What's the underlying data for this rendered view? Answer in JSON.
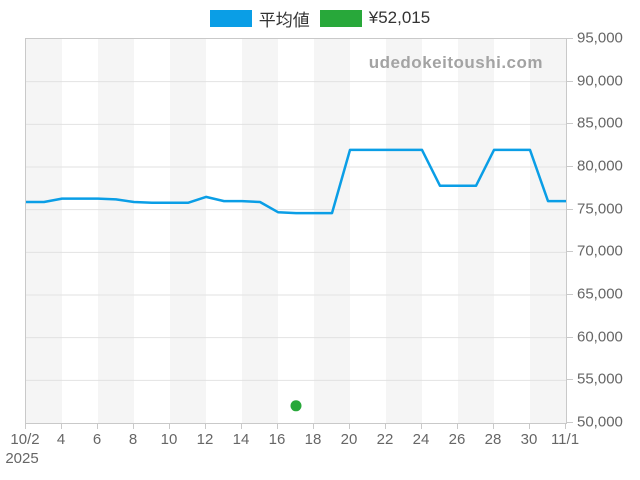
{
  "watermark": "udedokeitoushi.com",
  "legend": {
    "items": [
      {
        "label": "平均値",
        "color": "#0a9ee6"
      },
      {
        "label": "¥52,015",
        "color": "#28a83a"
      }
    ]
  },
  "chart_data": {
    "type": "line",
    "title": "",
    "xlabel": "",
    "ylabel": "",
    "year_label": "2025",
    "x": [
      "10/2",
      "10/3",
      "10/4",
      "10/5",
      "10/6",
      "10/7",
      "10/8",
      "10/9",
      "10/10",
      "10/11",
      "10/12",
      "10/13",
      "10/14",
      "10/15",
      "10/16",
      "10/17",
      "10/18",
      "10/19",
      "10/20",
      "10/21",
      "10/22",
      "10/23",
      "10/24",
      "10/25",
      "10/26",
      "10/27",
      "10/28",
      "10/29",
      "10/30",
      "10/31",
      "11/1"
    ],
    "series": [
      {
        "name": "平均値",
        "type": "line",
        "color": "#0a9ee6",
        "values": [
          75900,
          75900,
          76300,
          76300,
          76300,
          76200,
          75900,
          75800,
          75800,
          75800,
          76500,
          76000,
          76000,
          75900,
          74700,
          74600,
          74600,
          74600,
          82000,
          82000,
          82000,
          82000,
          82000,
          77800,
          77800,
          77800,
          82000,
          82000,
          82000,
          76000,
          76000
        ]
      },
      {
        "name": "¥52,015",
        "type": "scatter",
        "color": "#28a83a",
        "points": [
          {
            "x": "10/17",
            "y": 52015
          }
        ]
      }
    ],
    "x_ticks": [
      {
        "label": "10/2",
        "day": 0
      },
      {
        "label": "4",
        "day": 2
      },
      {
        "label": "6",
        "day": 4
      },
      {
        "label": "8",
        "day": 6
      },
      {
        "label": "10",
        "day": 8
      },
      {
        "label": "12",
        "day": 10
      },
      {
        "label": "14",
        "day": 12
      },
      {
        "label": "16",
        "day": 14
      },
      {
        "label": "18",
        "day": 16
      },
      {
        "label": "20",
        "day": 18
      },
      {
        "label": "22",
        "day": 20
      },
      {
        "label": "24",
        "day": 22
      },
      {
        "label": "26",
        "day": 24
      },
      {
        "label": "28",
        "day": 26
      },
      {
        "label": "30",
        "day": 28
      },
      {
        "label": "11/1",
        "day": 30
      }
    ],
    "y_ticks": [
      {
        "value": 95000,
        "label": "95,000"
      },
      {
        "value": 90000,
        "label": "90,000"
      },
      {
        "value": 85000,
        "label": "85,000"
      },
      {
        "value": 80000,
        "label": "80,000"
      },
      {
        "value": 75000,
        "label": "75,000"
      },
      {
        "value": 70000,
        "label": "70,000"
      },
      {
        "value": 65000,
        "label": "65,000"
      },
      {
        "value": 60000,
        "label": "60,000"
      },
      {
        "value": 55000,
        "label": "55,000"
      },
      {
        "value": 50000,
        "label": "50,000"
      }
    ],
    "ylim": [
      50000,
      95000
    ],
    "grid": true,
    "band_color": "#f5f5f5",
    "legend_position": "top"
  }
}
